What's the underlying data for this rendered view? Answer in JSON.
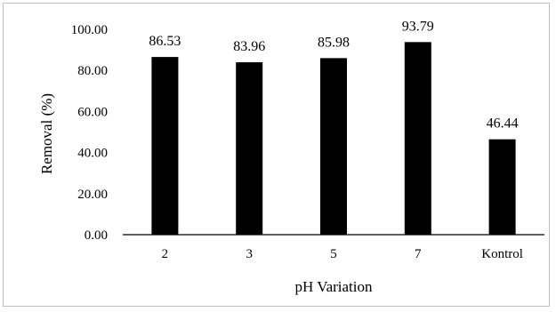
{
  "chart_data": {
    "type": "bar",
    "categories": [
      "2",
      "3",
      "5",
      "7",
      "Kontrol"
    ],
    "values": [
      86.53,
      83.96,
      85.98,
      93.79,
      46.44
    ],
    "data_labels": [
      "86.53",
      "83.96",
      "85.98",
      "93.79",
      "46.44"
    ],
    "title": "",
    "xlabel": "pH Variation",
    "ylabel": "Removal (%)",
    "ylim": [
      0,
      100
    ],
    "yticks": [
      0,
      20,
      40,
      60,
      80,
      100
    ],
    "ytick_labels": [
      "0.00",
      "20.00",
      "40.00",
      "60.00",
      "80.00",
      "100.00"
    ],
    "grid": false,
    "legend": "none",
    "bar_color": "#000000",
    "axis_color": "#000000"
  }
}
